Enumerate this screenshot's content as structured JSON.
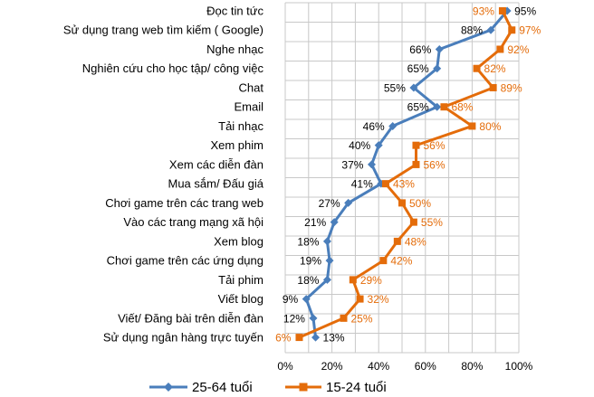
{
  "colors": {
    "series_25_64": "#4a7ebb",
    "series_15_24": "#e46c0a",
    "grid": "#c8c8c8",
    "text": "#000000"
  },
  "chart_data": {
    "type": "line",
    "orientation": "horizontal-categories",
    "categories": [
      "Đọc tin tức",
      "Sử dụng trang web tìm kiếm ( Google)",
      "Nghe nhạc",
      "Nghiên cứu cho học tập/ công việc",
      "Chat",
      "Email",
      "Tải nhạc",
      "Xem phim",
      "Xem các diễn đàn",
      "Mua sắm/ Đấu giá",
      "Chơi game trên các trang web",
      "Vào các trang mạng xã hội",
      "Xem blog",
      "Chơi game trên các ứng dụng",
      "Tải phim",
      "Viết blog",
      "Viết/ Đăng bài trên diễn đàn",
      "Sử dụng ngân hàng trực tuyến"
    ],
    "series": [
      {
        "name": "25-64 tuổi",
        "color": "#4a7ebb",
        "marker": "diamond",
        "values": [
          95,
          88,
          66,
          65,
          55,
          65,
          46,
          40,
          37,
          41,
          27,
          21,
          18,
          19,
          18,
          9,
          12,
          13
        ],
        "labels": [
          "95%",
          "88%",
          "66%",
          "65%",
          "55%",
          "65%",
          "46%",
          "40%",
          "37%",
          "41%",
          "27%",
          "21%",
          "18%",
          "19%",
          "18%",
          "9%",
          "12%",
          "13%"
        ]
      },
      {
        "name": "15-24 tuổi",
        "color": "#e46c0a",
        "marker": "square",
        "values": [
          93,
          97,
          92,
          82,
          89,
          68,
          80,
          56,
          56,
          43,
          50,
          55,
          48,
          42,
          29,
          32,
          25,
          6
        ],
        "labels": [
          "93%",
          "97%",
          "92%",
          "82%",
          "89%",
          "68%",
          "80%",
          "56%",
          "56%",
          "43%",
          "50%",
          "55%",
          "48%",
          "42%",
          "29%",
          "32%",
          "25%",
          "6%"
        ]
      }
    ],
    "x_axis": {
      "range": [
        0,
        100
      ],
      "ticks": [
        "0%",
        "20%",
        "40%",
        "60%",
        "80%",
        "100%"
      ]
    },
    "grid": true,
    "legend": [
      "25-64 tuổi",
      "15-24 tuổi"
    ],
    "legend_position": "bottom"
  }
}
